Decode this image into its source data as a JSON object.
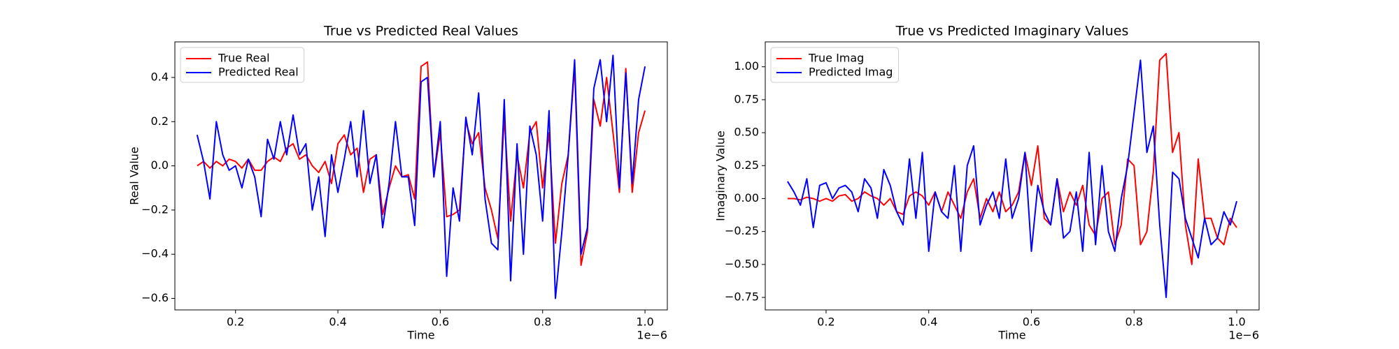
{
  "chart_data": [
    {
      "type": "line",
      "title": "True vs Predicted Real Values",
      "xlabel": "Time",
      "ylabel": "Real Value",
      "x_offset_label": "1e−6",
      "x": [
        0.125,
        0.1375,
        0.15,
        0.1625,
        0.175,
        0.1875,
        0.2,
        0.2125,
        0.225,
        0.2375,
        0.25,
        0.2625,
        0.275,
        0.2875,
        0.3,
        0.3125,
        0.325,
        0.3375,
        0.35,
        0.3625,
        0.375,
        0.3875,
        0.4,
        0.4125,
        0.425,
        0.4375,
        0.45,
        0.4625,
        0.475,
        0.4875,
        0.5,
        0.5125,
        0.525,
        0.5375,
        0.55,
        0.5625,
        0.575,
        0.5875,
        0.6,
        0.6125,
        0.625,
        0.6375,
        0.65,
        0.6625,
        0.675,
        0.6875,
        0.7,
        0.7125,
        0.725,
        0.7375,
        0.75,
        0.7625,
        0.775,
        0.7875,
        0.8,
        0.8125,
        0.825,
        0.8375,
        0.85,
        0.8625,
        0.875,
        0.8875,
        0.9,
        0.9125,
        0.925,
        0.9375,
        0.95,
        0.9625,
        0.975,
        0.9875,
        1.0
      ],
      "series": [
        {
          "name": "True Real",
          "color": "#ff0000",
          "values": [
            0,
            0.02,
            -0.01,
            0.02,
            0,
            0.03,
            0.02,
            -0.01,
            0.03,
            -0.02,
            -0.02,
            0.02,
            0.04,
            0.02,
            0.08,
            0.1,
            0.03,
            0.05,
            0,
            -0.03,
            0.02,
            -0.08,
            0.1,
            0.14,
            0.05,
            0.08,
            -0.12,
            0.03,
            0.05,
            -0.22,
            -0.1,
            0,
            -0.05,
            -0.04,
            -0.15,
            0.45,
            0.47,
            -0.05,
            0.15,
            -0.23,
            -0.22,
            -0.2,
            0.2,
            0.1,
            0.15,
            -0.1,
            -0.2,
            -0.33,
            0.22,
            -0.25,
            0.05,
            -0.1,
            0.15,
            0.2,
            -0.1,
            0.15,
            -0.35,
            -0.08,
            0.05,
            0.45,
            -0.45,
            -0.3,
            0.3,
            0.18,
            0.4,
            0.15,
            -0.12,
            0.44,
            -0.12,
            0.15,
            0.25
          ]
        },
        {
          "name": "Predicted Real",
          "color": "#0000ff",
          "values": [
            0.14,
            0.02,
            -0.15,
            0.2,
            0.05,
            -0.02,
            0,
            -0.1,
            0.03,
            -0.05,
            -0.23,
            0.12,
            0.03,
            0.2,
            0.05,
            0.23,
            0.05,
            0.1,
            -0.2,
            -0.05,
            -0.32,
            0.05,
            -0.12,
            0.03,
            0.2,
            -0.05,
            0.25,
            -0.08,
            0.05,
            -0.28,
            -0.08,
            0.2,
            -0.05,
            -0.05,
            -0.27,
            0.38,
            0.4,
            -0.05,
            0.2,
            -0.5,
            -0.1,
            -0.25,
            0.22,
            0.05,
            0.33,
            -0.15,
            -0.35,
            -0.38,
            0.3,
            -0.52,
            0.1,
            -0.4,
            0.18,
            0.05,
            -0.25,
            0.25,
            -0.6,
            -0.3,
            0.05,
            0.48,
            -0.4,
            -0.28,
            0.35,
            0.48,
            0.2,
            0.5,
            -0.1,
            0.42,
            -0.08,
            0.3,
            0.45
          ]
        }
      ],
      "xlim": [
        0.0815,
        1.0436
      ],
      "ylim": [
        -0.652,
        0.561
      ],
      "xticks": [
        0.2,
        0.4,
        0.6,
        0.8,
        {
          "value": 1,
          "label": "1.0"
        }
      ],
      "yticks": [
        {
          "value": -0.6,
          "label": "−0.6"
        },
        {
          "value": -0.4,
          "label": "−0.4"
        },
        {
          "value": -0.2,
          "label": "−0.2"
        },
        {
          "value": 0,
          "label": "0.0"
        },
        0.2,
        0.4
      ],
      "legend": "upper left"
    },
    {
      "type": "line",
      "title": "True vs Predicted Imaginary Values",
      "xlabel": "Time",
      "ylabel": "Imaginary Value",
      "x_offset_label": "1e−6",
      "x": [
        0.125,
        0.1375,
        0.15,
        0.1625,
        0.175,
        0.1875,
        0.2,
        0.2125,
        0.225,
        0.2375,
        0.25,
        0.2625,
        0.275,
        0.2875,
        0.3,
        0.3125,
        0.325,
        0.3375,
        0.35,
        0.3625,
        0.375,
        0.3875,
        0.4,
        0.4125,
        0.425,
        0.4375,
        0.45,
        0.4625,
        0.475,
        0.4875,
        0.5,
        0.5125,
        0.525,
        0.5375,
        0.55,
        0.5625,
        0.575,
        0.5875,
        0.6,
        0.6125,
        0.625,
        0.6375,
        0.65,
        0.6625,
        0.675,
        0.6875,
        0.7,
        0.7125,
        0.725,
        0.7375,
        0.75,
        0.7625,
        0.775,
        0.7875,
        0.8,
        0.8125,
        0.825,
        0.8375,
        0.85,
        0.8625,
        0.875,
        0.8875,
        0.9,
        0.9125,
        0.925,
        0.9375,
        0.95,
        0.9625,
        0.975,
        0.9875,
        1.0
      ],
      "series": [
        {
          "name": "True Imag",
          "color": "#ff0000",
          "values": [
            0,
            0,
            -0.01,
            0.01,
            0,
            -0.02,
            0,
            -0.02,
            0.02,
            0.03,
            -0.02,
            0,
            0.05,
            0.02,
            0,
            -0.05,
            0,
            -0.1,
            -0.12,
            0.02,
            0.05,
            0.02,
            -0.05,
            0.05,
            -0.1,
            0.05,
            -0.05,
            -0.15,
            0.05,
            0.15,
            -0.15,
            0,
            -0.1,
            0.05,
            -0.1,
            -0.05,
            0.05,
            0.35,
            0.1,
            0.4,
            -0.15,
            -0.2,
            0.15,
            -0.1,
            0.05,
            -0.05,
            0.1,
            -0.2,
            -0.28,
            0,
            0.05,
            -0.35,
            -0.2,
            0.3,
            0.25,
            -0.35,
            -0.25,
            0.2,
            1.05,
            1.1,
            0.35,
            0.5,
            -0.2,
            -0.5,
            0.3,
            -0.15,
            -0.15,
            -0.3,
            -0.35,
            -0.15,
            -0.22
          ]
        },
        {
          "name": "Predicted Imag",
          "color": "#0000ff",
          "values": [
            0.13,
            0.05,
            -0.05,
            0.15,
            -0.22,
            0.1,
            0.12,
            0,
            0.08,
            0.1,
            0.05,
            -0.1,
            0.15,
            0.08,
            -0.15,
            0.22,
            0.1,
            -0.1,
            -0.2,
            0.3,
            -0.15,
            0.35,
            -0.4,
            0.05,
            -0.1,
            -0.15,
            0.25,
            -0.4,
            0.25,
            0.4,
            -0.2,
            -0.05,
            0.05,
            -0.15,
            0.3,
            -0.15,
            0,
            0.35,
            -0.4,
            0.1,
            -0.1,
            -0.2,
            0.15,
            -0.3,
            -0.25,
            0.05,
            -0.4,
            0.35,
            -0.35,
            0.25,
            -0.25,
            -0.4,
            0,
            0.25,
            0.65,
            1.05,
            0.35,
            0.55,
            -0.2,
            -0.75,
            0.2,
            0.15,
            -0.15,
            -0.3,
            -0.45,
            -0.15,
            -0.35,
            -0.3,
            -0.1,
            -0.2,
            -0.02
          ]
        }
      ],
      "xlim": [
        0.0815,
        1.0436
      ],
      "ylim": [
        -0.845,
        1.189
      ],
      "xticks": [
        0.2,
        0.4,
        0.6,
        0.8,
        {
          "value": 1,
          "label": "1.0"
        }
      ],
      "yticks": [
        {
          "value": -0.75,
          "label": "−0.75"
        },
        {
          "value": -0.5,
          "label": "−0.50"
        },
        {
          "value": -0.25,
          "label": "−0.25"
        },
        {
          "value": 0,
          "label": "0.00"
        },
        {
          "value": 0.25,
          "label": "0.25"
        },
        {
          "value": 0.5,
          "label": "0.50"
        },
        {
          "value": 0.75,
          "label": "0.75"
        },
        {
          "value": 1,
          "label": "1.00"
        }
      ],
      "legend": "upper left"
    }
  ]
}
